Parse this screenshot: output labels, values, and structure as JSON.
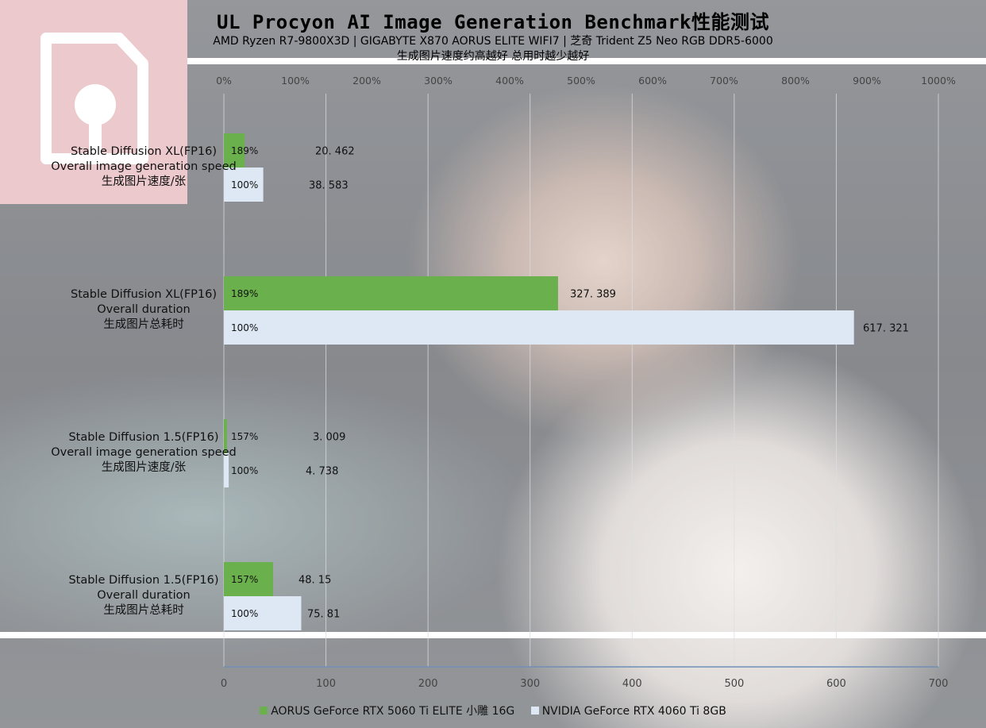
{
  "chart_data": {
    "type": "bar",
    "orientation": "horizontal",
    "title": "UL Procyon AI Image Generation Benchmark性能测试",
    "subtitle": "AMD Ryzen R7-9800X3D | GIGABYTE X870 AORUS ELITE WIFI7 | 芝奇 Trident Z5 Neo RGB DDR5-6000",
    "subtitle2": "生成图片速度约高越好 总用时越少越好",
    "categories": [
      [
        "Stable Diffusion XL(FP16)",
        "Overall image generation speed",
        "生成图片速度/张"
      ],
      [
        "Stable Diffusion XL(FP16)",
        "Overall duration",
        "生成图片总耗时"
      ],
      [
        "Stable Diffusion 1.5(FP16)",
        "Overall image generation speed",
        "生成图片速度/张"
      ],
      [
        "Stable Diffusion 1.5(FP16)",
        "Overall duration",
        "生成图片总耗时"
      ]
    ],
    "series": [
      {
        "name": "AORUS GeForce RTX 5060 Ti ELITE 小雕 16G",
        "color": "#6ab04c",
        "values": [
          20.462,
          327.389,
          3.009,
          48.15
        ],
        "value_labels": [
          "20. 462",
          "327. 389",
          "3. 009",
          "48. 15"
        ],
        "percent_labels": [
          "189%",
          "189%",
          "157%",
          "157%"
        ],
        "percent_values": [
          189,
          189,
          157,
          157
        ]
      },
      {
        "name": "NVIDIA GeForce RTX 4060 Ti 8GB",
        "color": "#dde8f4",
        "values": [
          38.583,
          617.321,
          4.738,
          75.81
        ],
        "value_labels": [
          "38. 583",
          "617. 321",
          "4. 738",
          "75. 81"
        ],
        "percent_labels": [
          "100%",
          "100%",
          "100%",
          "100%"
        ],
        "percent_values": [
          100,
          100,
          100,
          100
        ]
      }
    ],
    "x_axis_bottom": {
      "range": [
        0,
        700
      ],
      "ticks": [
        "0",
        "100",
        "200",
        "300",
        "400",
        "500",
        "600",
        "700"
      ]
    },
    "x_axis_top": {
      "range": [
        0,
        1000
      ],
      "ticks": [
        "0%",
        "100%",
        "200%",
        "300%",
        "400%",
        "500%",
        "600%",
        "700%",
        "800%",
        "900%",
        "1000%"
      ]
    },
    "grid": true,
    "legend_position": "bottom"
  }
}
